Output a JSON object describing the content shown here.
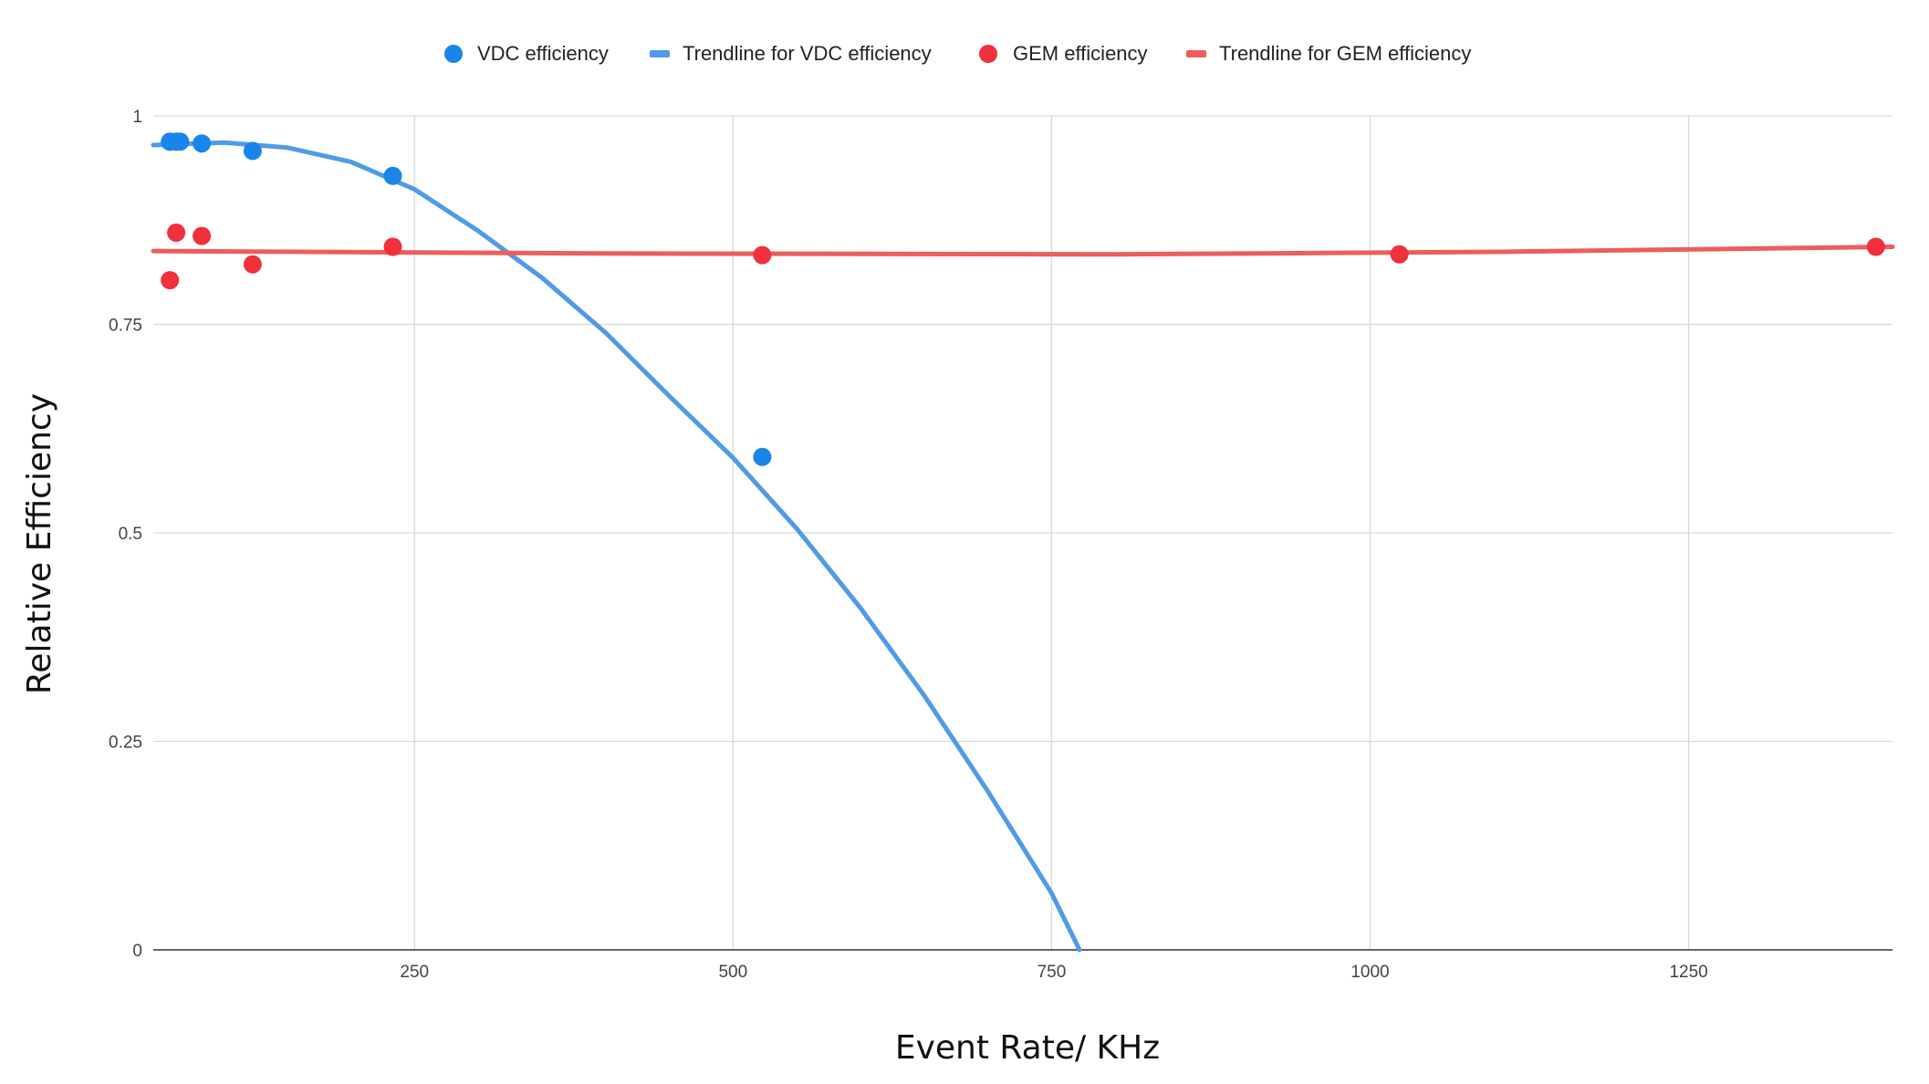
{
  "chart_data": {
    "type": "scatter",
    "xlabel": "Event Rate/ KHz",
    "ylabel": "Relative Efficiency",
    "xlim": [
      45,
      1410
    ],
    "ylim": [
      0,
      1
    ],
    "x_ticks": [
      250,
      500,
      750,
      1000,
      1250
    ],
    "y_ticks": [
      0,
      0.25,
      0.5,
      0.75,
      1
    ],
    "y_tick_labels": [
      "0",
      "0.25",
      "0.5",
      "0.75",
      "1"
    ],
    "grid": true,
    "legend_position": "top",
    "series": [
      {
        "name": "VDC efficiency",
        "kind": "points",
        "color": "#1a85e8",
        "points": [
          {
            "x": 58,
            "y": 0.969
          },
          {
            "x": 63,
            "y": 0.969
          },
          {
            "x": 66,
            "y": 0.969
          },
          {
            "x": 83,
            "y": 0.967
          },
          {
            "x": 123,
            "y": 0.958
          },
          {
            "x": 233,
            "y": 0.928
          },
          {
            "x": 523,
            "y": 0.591
          }
        ]
      },
      {
        "name": "Trendline for VDC efficiency",
        "kind": "trendline",
        "color": "#4f9be6",
        "points": [
          {
            "x": 45,
            "y": 0.965
          },
          {
            "x": 100,
            "y": 0.968
          },
          {
            "x": 150,
            "y": 0.962
          },
          {
            "x": 200,
            "y": 0.945
          },
          {
            "x": 250,
            "y": 0.912
          },
          {
            "x": 300,
            "y": 0.862
          },
          {
            "x": 350,
            "y": 0.806
          },
          {
            "x": 400,
            "y": 0.74
          },
          {
            "x": 450,
            "y": 0.664
          },
          {
            "x": 500,
            "y": 0.59
          },
          {
            "x": 550,
            "y": 0.505
          },
          {
            "x": 600,
            "y": 0.41
          },
          {
            "x": 650,
            "y": 0.305
          },
          {
            "x": 700,
            "y": 0.19
          },
          {
            "x": 750,
            "y": 0.068
          },
          {
            "x": 772,
            "y": 0.0
          }
        ]
      },
      {
        "name": "GEM efficiency",
        "kind": "points",
        "color": "#f0303a",
        "points": [
          {
            "x": 58,
            "y": 0.803
          },
          {
            "x": 63,
            "y": 0.86
          },
          {
            "x": 83,
            "y": 0.856
          },
          {
            "x": 123,
            "y": 0.822
          },
          {
            "x": 233,
            "y": 0.843
          },
          {
            "x": 523,
            "y": 0.833
          },
          {
            "x": 1023,
            "y": 0.834
          },
          {
            "x": 1397,
            "y": 0.843
          }
        ]
      },
      {
        "name": "Trendline for GEM efficiency",
        "kind": "trendline",
        "color": "#ee5c5c",
        "points": [
          {
            "x": 45,
            "y": 0.838
          },
          {
            "x": 400,
            "y": 0.835
          },
          {
            "x": 800,
            "y": 0.834
          },
          {
            "x": 1100,
            "y": 0.837
          },
          {
            "x": 1410,
            "y": 0.843
          }
        ]
      }
    ]
  }
}
